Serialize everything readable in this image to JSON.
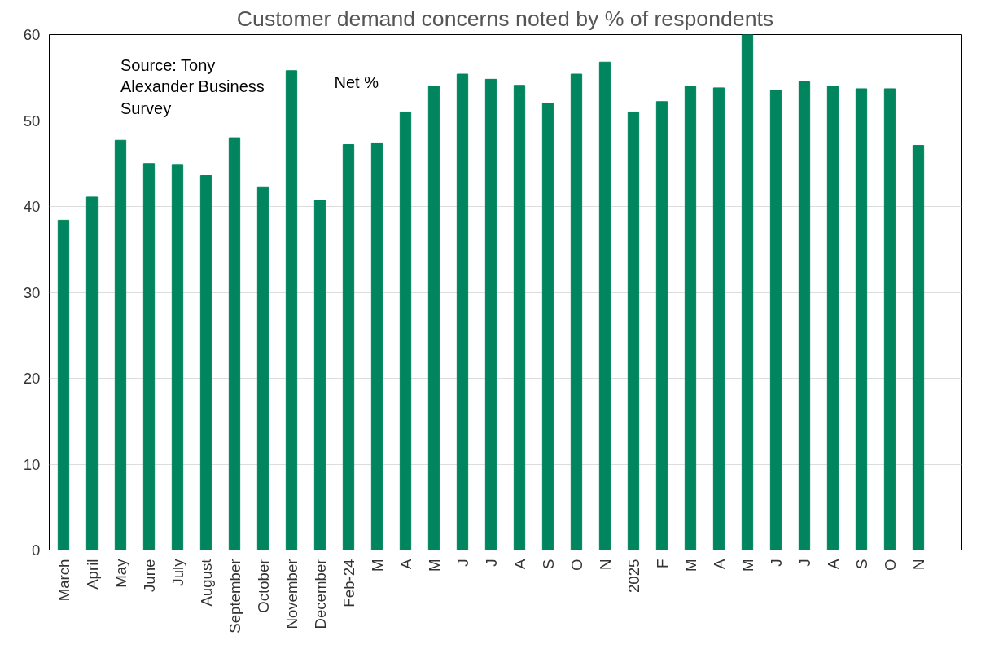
{
  "chart_data": {
    "type": "bar",
    "title": "Customer demand concerns noted by % of respondents",
    "categories": [
      "March",
      "April",
      "May",
      "June",
      "July",
      "August",
      "September",
      "October",
      "November",
      "December",
      "Feb-24",
      "M",
      "A",
      "M",
      "J",
      "J",
      "A",
      "S",
      "O",
      "N",
      "2025",
      "F",
      "M",
      "A",
      "M",
      "J",
      "J",
      "A",
      "S",
      "O",
      "N"
    ],
    "values": [
      38.4,
      41.1,
      47.7,
      45.0,
      44.8,
      43.6,
      48.0,
      42.2,
      55.8,
      40.7,
      47.2,
      47.4,
      51.0,
      54.0,
      55.4,
      54.8,
      54.1,
      52.0,
      55.4,
      56.8,
      51.0,
      52.2,
      54.0,
      53.8,
      60.0,
      53.5,
      54.5,
      54.0,
      53.7,
      53.7,
      47.1
    ],
    "color": "#00855f",
    "ylim": [
      0,
      60
    ],
    "yticks": [
      0,
      10,
      20,
      30,
      40,
      50,
      60
    ],
    "grid": "y",
    "annotations": [
      "Source: Tony Alexander Business Survey",
      "Net %"
    ]
  }
}
